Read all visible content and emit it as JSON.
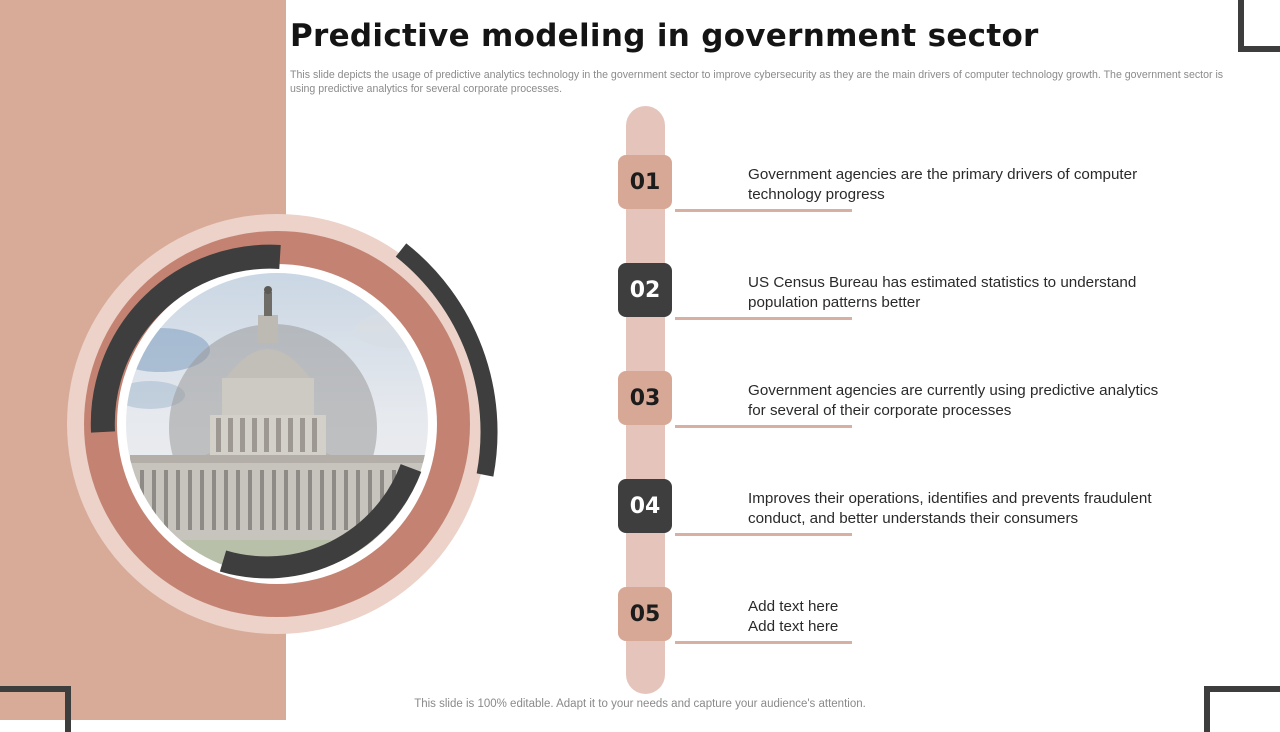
{
  "slide": {
    "title": "Predictive modeling in government sector",
    "subtitle": "This slide depicts the usage of predictive analytics technology in the government sector to improve cybersecurity as they are the main drivers of computer technology growth. The government sector is using predictive analytics for several corporate processes.",
    "footer": "This slide is 100% editable. Adapt it to your needs and capture your audience's attention."
  },
  "colors": {
    "panel": "#d8ab99",
    "ring": "#c48372",
    "dark": "#3e3e3e",
    "rail": "#e5c5bb",
    "badge_light": "#d8a896"
  },
  "image": {
    "subject": "capitol-building-photo"
  },
  "steps": [
    {
      "number": "01",
      "style": "light",
      "lines": [
        "Government  agencies are the primary drivers of computer",
        "technology progress"
      ]
    },
    {
      "number": "02",
      "style": "dark",
      "lines": [
        "US Census Bureau has estimated statistics to understand",
        "population patterns better"
      ]
    },
    {
      "number": "03",
      "style": "light",
      "lines": [
        "Government  agencies are currently  using predictive analytics",
        "for several of their corporate processes"
      ]
    },
    {
      "number": "04",
      "style": "dark",
      "lines": [
        "Improves their operations, identifies and prevents fraudulent",
        "conduct, and better understands their consumers"
      ]
    },
    {
      "number": "05",
      "style": "light",
      "lines": [
        "Add text here",
        "Add text here"
      ]
    }
  ]
}
